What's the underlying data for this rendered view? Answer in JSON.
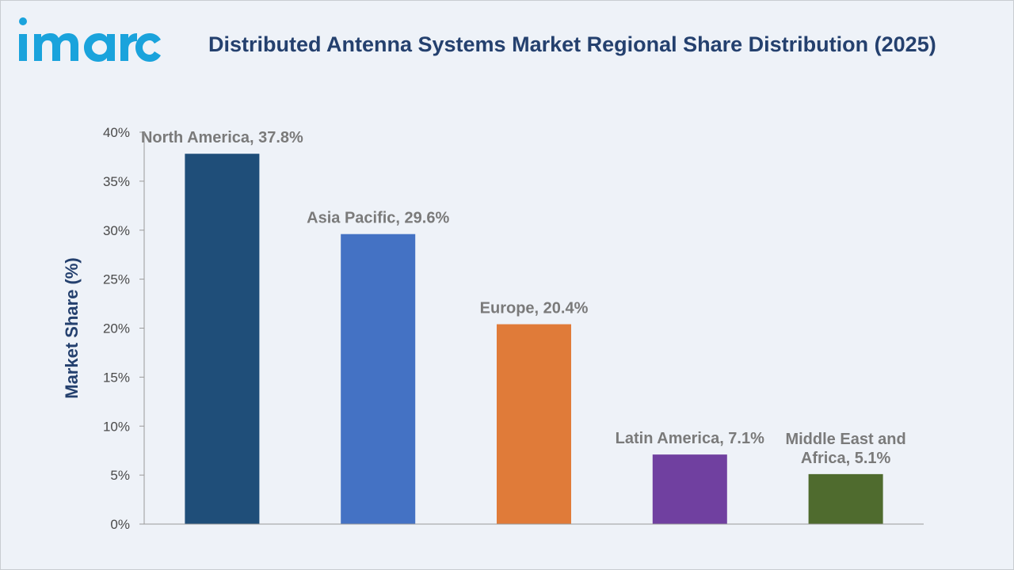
{
  "brand": {
    "logo_text": "imarc"
  },
  "colors": {
    "brand": "#1aa3dc",
    "title": "#24406e",
    "axis_label": "#24406e",
    "data_label": "#7a7a7a",
    "tick_label": "#4a4a4a"
  },
  "chart_data": {
    "type": "bar",
    "title": "Distributed Antenna Systems Market Regional Share Distribution (2025)",
    "xlabel": "",
    "ylabel": "Market Share (%)",
    "ylim": [
      0,
      40
    ],
    "yticks": [
      "0%",
      "5%",
      "10%",
      "15%",
      "20%",
      "25%",
      "30%",
      "35%",
      "40%"
    ],
    "grid": false,
    "categories": [
      "North America",
      "Asia Pacific",
      "Europe",
      "Latin America",
      "Middle East and Africa"
    ],
    "values": [
      37.8,
      29.6,
      20.4,
      7.1,
      5.1
    ],
    "bar_colors": [
      "#1f4e79",
      "#4472c4",
      "#e07b39",
      "#7040a0",
      "#4f6b2e"
    ],
    "data_labels": [
      [
        "North America, 37.8%"
      ],
      [
        "Asia Pacific, 29.6%"
      ],
      [
        "Europe, 20.4%"
      ],
      [
        "Latin America, 7.1%"
      ],
      [
        "Middle East and",
        "Africa, 5.1%"
      ]
    ]
  }
}
